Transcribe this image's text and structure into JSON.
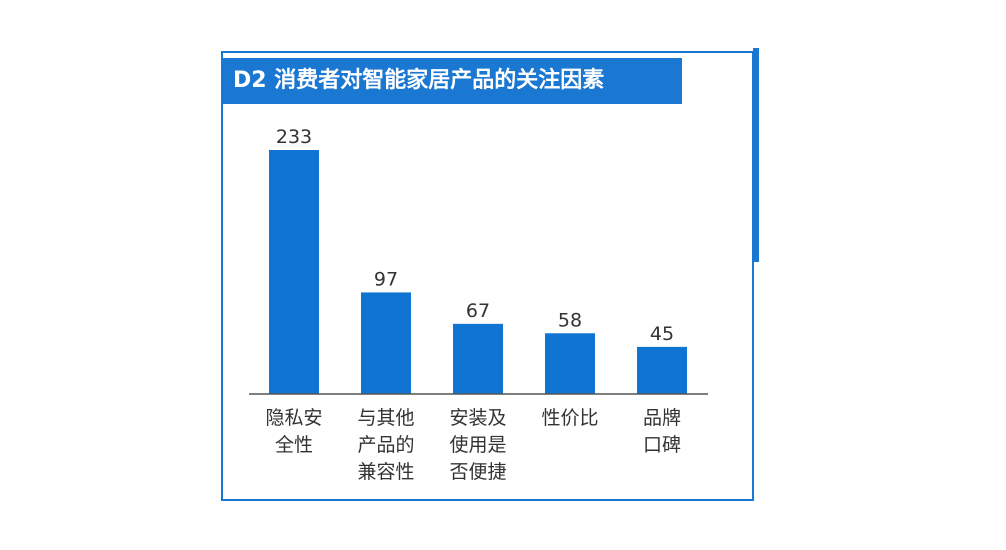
{
  "chart_data": {
    "type": "bar",
    "title": "D2 消费者对智能家居产品的关注因素",
    "categories": [
      [
        "隐私安",
        "全性"
      ],
      [
        "与其他",
        "产品的",
        "兼容性"
      ],
      [
        "安装及",
        "使用是",
        "否便捷"
      ],
      [
        "性价比"
      ],
      [
        "品牌",
        "口碑"
      ]
    ],
    "values": [
      233,
      97,
      67,
      58,
      45
    ],
    "ylim": [
      0,
      233
    ],
    "grid": false,
    "legend": "none"
  },
  "colors": {
    "bar": "#0f74d2",
    "accent": "#1a77d2",
    "text": "#333333"
  }
}
